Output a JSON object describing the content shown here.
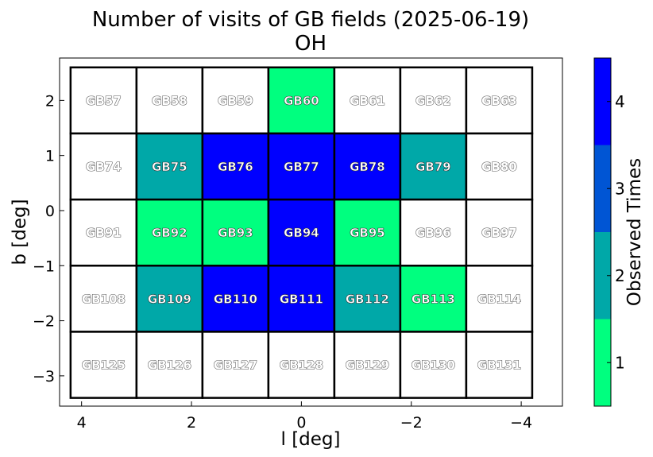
{
  "chart_data": {
    "type": "heatmap",
    "title": "Number of visits of GB fields (2025-06-19)",
    "subtitle": "OH",
    "xlabel": "l [deg]",
    "ylabel": "b [deg]",
    "xlim": [
      4.4,
      -4.75
    ],
    "ylim": [
      -3.55,
      2.77
    ],
    "x_ticks": [
      4,
      2,
      0,
      -2,
      -4
    ],
    "x_tick_labels": [
      "4",
      "2",
      "0",
      "−2",
      "−4"
    ],
    "y_ticks": [
      2,
      1,
      0,
      -1,
      -2,
      -3
    ],
    "y_tick_labels": [
      "2",
      "1",
      "0",
      "−1",
      "−2",
      "−3"
    ],
    "grid": false,
    "colorbar": {
      "label": "Observed Times",
      "ticks": [
        1,
        2,
        3,
        4
      ],
      "tick_labels": [
        "1",
        "2",
        "3",
        "4"
      ],
      "range": [
        0.5,
        4.5
      ],
      "colors": [
        "#00ff7f",
        "#00a8a8",
        "#0055d4",
        "#0000ff"
      ]
    },
    "columns_l": [
      3.6,
      2.4,
      1.2,
      0.0,
      -1.2,
      -2.4,
      -3.6
    ],
    "rows_b": [
      2.0,
      0.8,
      -0.4,
      -1.6,
      -2.8
    ],
    "fields": [
      [
        {
          "name": "GB57",
          "visits": 0
        },
        {
          "name": "GB58",
          "visits": 0
        },
        {
          "name": "GB59",
          "visits": 0
        },
        {
          "name": "GB60",
          "visits": 1
        },
        {
          "name": "GB61",
          "visits": 0
        },
        {
          "name": "GB62",
          "visits": 0
        },
        {
          "name": "GB63",
          "visits": 0
        }
      ],
      [
        {
          "name": "GB74",
          "visits": 0
        },
        {
          "name": "GB75",
          "visits": 2
        },
        {
          "name": "GB76",
          "visits": 4
        },
        {
          "name": "GB77",
          "visits": 4
        },
        {
          "name": "GB78",
          "visits": 4
        },
        {
          "name": "GB79",
          "visits": 2
        },
        {
          "name": "GB80",
          "visits": 0
        }
      ],
      [
        {
          "name": "GB91",
          "visits": 0
        },
        {
          "name": "GB92",
          "visits": 1
        },
        {
          "name": "GB93",
          "visits": 1
        },
        {
          "name": "GB94",
          "visits": 4
        },
        {
          "name": "GB95",
          "visits": 1
        },
        {
          "name": "GB96",
          "visits": 0
        },
        {
          "name": "GB97",
          "visits": 0
        }
      ],
      [
        {
          "name": "GB108",
          "visits": 0
        },
        {
          "name": "GB109",
          "visits": 2
        },
        {
          "name": "GB110",
          "visits": 4
        },
        {
          "name": "GB111",
          "visits": 4
        },
        {
          "name": "GB112",
          "visits": 2
        },
        {
          "name": "GB113",
          "visits": 1
        },
        {
          "name": "GB114",
          "visits": 0
        }
      ],
      [
        {
          "name": "GB125",
          "visits": 0
        },
        {
          "name": "GB126",
          "visits": 0
        },
        {
          "name": "GB127",
          "visits": 0
        },
        {
          "name": "GB128",
          "visits": 0
        },
        {
          "name": "GB129",
          "visits": 0
        },
        {
          "name": "GB130",
          "visits": 0
        },
        {
          "name": "GB131",
          "visits": 0
        }
      ]
    ]
  }
}
